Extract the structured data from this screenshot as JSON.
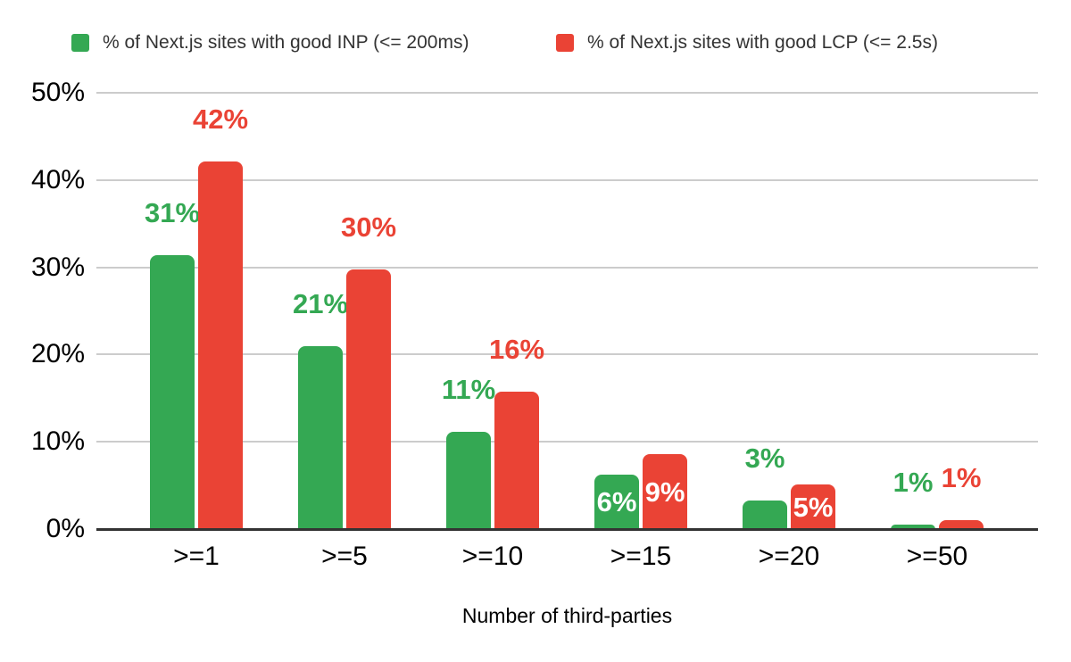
{
  "legend": [
    {
      "key": "inp",
      "label": "% of Next.js sites with good INP (<= 200ms)",
      "color": "#34a853"
    },
    {
      "key": "lcp",
      "label": "% of Next.js sites with good LCP (<= 2.5s)",
      "color": "#ea4335"
    }
  ],
  "chart_data": {
    "type": "bar",
    "title": "",
    "xlabel": "Number of third-parties",
    "ylabel": "",
    "categories": [
      ">=1",
      ">=5",
      ">=10",
      ">=15",
      ">=20",
      ">=50"
    ],
    "category_keys": [
      "ge1",
      "ge5",
      "ge10",
      "ge15",
      "ge20",
      "ge50"
    ],
    "yticks": [
      "0%",
      "10%",
      "20%",
      "30%",
      "40%",
      "50%"
    ],
    "ylim": [
      0,
      50
    ],
    "grid": true,
    "legend_position": "top",
    "axis_color": "#333333",
    "gridline_color": "#cccccc",
    "series": [
      {
        "key": "inp",
        "name": "% of Next.js sites with good INP (<= 200ms)",
        "color": "#34a853",
        "values": [
          31.4,
          21.0,
          11.1,
          6.2,
          3.3,
          0.5
        ],
        "labels": [
          "31%",
          "21%",
          "11%",
          "6%",
          "3%",
          "1%"
        ],
        "label_inside": [
          false,
          false,
          false,
          true,
          false,
          false
        ]
      },
      {
        "key": "lcp",
        "name": "% of Next.js sites with good LCP (<= 2.5s)",
        "color": "#ea4335",
        "values": [
          42.1,
          29.8,
          15.7,
          8.6,
          5.1,
          1.0
        ],
        "labels": [
          "42%",
          "30%",
          "16%",
          "9%",
          "5%",
          "1%"
        ],
        "label_inside": [
          false,
          false,
          false,
          true,
          true,
          false
        ]
      }
    ]
  }
}
